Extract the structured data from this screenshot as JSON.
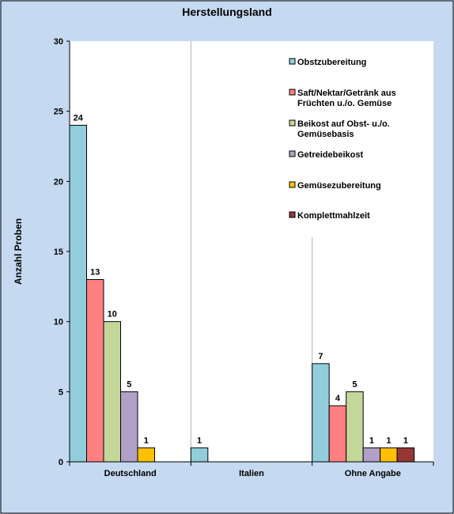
{
  "chart_data": {
    "type": "bar",
    "title": "Herstellungsland",
    "xlabel": "",
    "ylabel": "Anzahl Proben",
    "ylim": [
      0,
      30
    ],
    "yticks": [
      "0",
      "5",
      "10",
      "15",
      "20",
      "25",
      "30"
    ],
    "categories": [
      "Deutschland",
      "Italien",
      "Ohne Angabe"
    ],
    "grid": false,
    "legend_position": "top-right",
    "series": [
      {
        "name": "Obstzubereitung",
        "color": "#92cddc",
        "values": [
          24,
          1,
          7
        ]
      },
      {
        "name": "Saft/Nektar/Getränk aus Früchten u./o. Gemüse",
        "color": "#ff8080",
        "values": [
          13,
          null,
          4
        ]
      },
      {
        "name": "Beikost auf Obst- u./o. Gemüsebasis",
        "color": "#c4d79b",
        "values": [
          10,
          null,
          5
        ]
      },
      {
        "name": "Getreidebeikost",
        "color": "#b1a0c7",
        "values": [
          5,
          null,
          1
        ]
      },
      {
        "name": "Gemüsezubereitung",
        "color": "#ffc000",
        "values": [
          1,
          null,
          1
        ]
      },
      {
        "name": "Komplettmahlzeit",
        "color": "#953735",
        "values": [
          null,
          null,
          1
        ]
      }
    ],
    "legend_lines": [
      [
        "Obstzubereitung"
      ],
      [
        "Saft/Nektar/Getränk aus",
        "Früchten u./o. Gemüse"
      ],
      [
        "Beikost auf Obst- u./o.",
        "Gemüsebasis"
      ],
      [
        "Getreidebeikost"
      ],
      [
        "Gemüsezubereitung"
      ],
      [
        "Komplettmahlzeit"
      ]
    ]
  }
}
